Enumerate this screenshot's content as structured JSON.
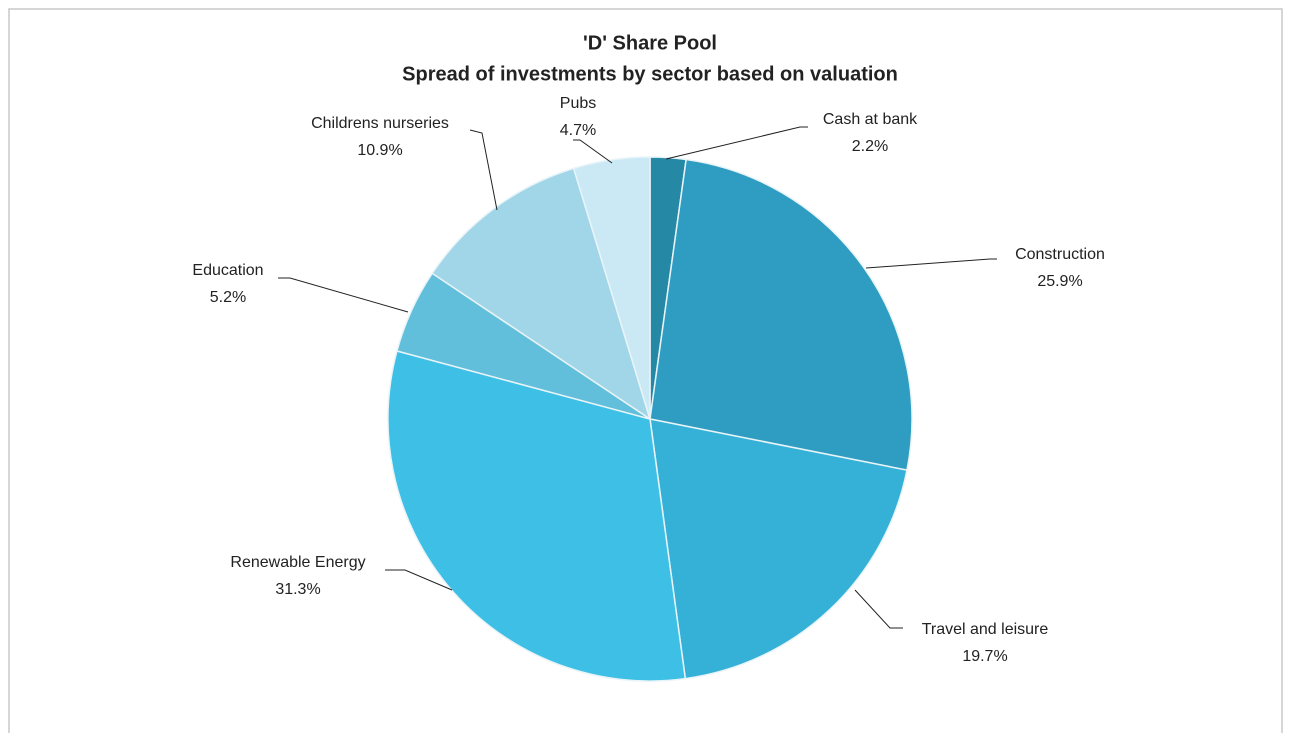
{
  "chart_data": {
    "type": "pie",
    "title": "'D' Share Pool",
    "subtitle": "Spread of investments by sector based on valuation",
    "categories": [
      "Cash at bank",
      "Construction",
      "Travel and leisure",
      "Renewable Energy",
      "Education",
      "Childrens nurseries",
      "Pubs"
    ],
    "values": [
      2.2,
      25.9,
      19.7,
      31.3,
      5.2,
      10.9,
      4.7
    ],
    "value_labels": [
      "2.2%",
      "25.9%",
      "19.7%",
      "31.3%",
      "5.2%",
      "10.9%",
      "4.7%"
    ],
    "colors": [
      "#2588a5",
      "#2f9dc1",
      "#35b1d8",
      "#3ec0e6",
      "#62bfdb",
      "#a1d5e8",
      "#cbe9f4"
    ]
  }
}
